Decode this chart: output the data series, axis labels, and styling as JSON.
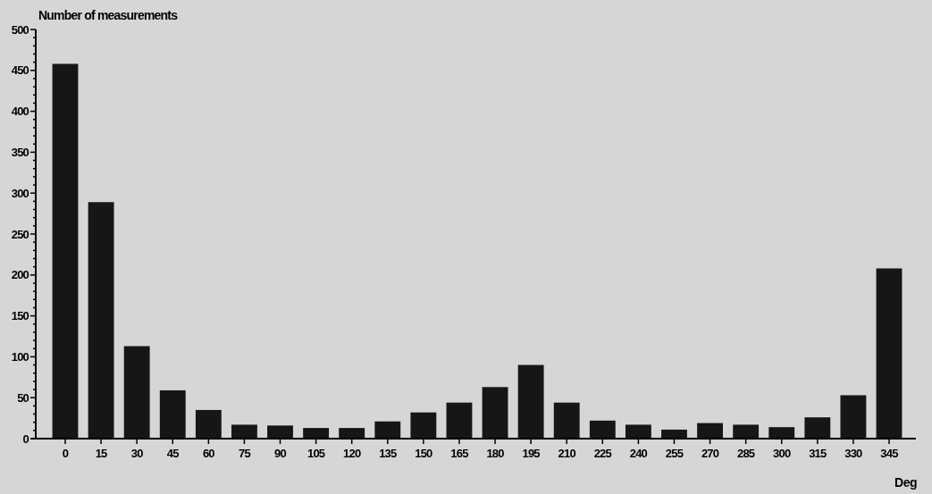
{
  "chart_data": {
    "type": "bar",
    "ylabel": "Number of measurements",
    "xlabel": "Deg",
    "categories": [
      "0",
      "15",
      "30",
      "45",
      "60",
      "75",
      "90",
      "105",
      "120",
      "135",
      "150",
      "165",
      "180",
      "195",
      "210",
      "225",
      "240",
      "255",
      "270",
      "285",
      "300",
      "315",
      "330",
      "345"
    ],
    "values": [
      458,
      289,
      113,
      59,
      35,
      17,
      16,
      13,
      13,
      21,
      32,
      44,
      63,
      90,
      44,
      22,
      17,
      11,
      19,
      17,
      14,
      26,
      53,
      208
    ],
    "color": "#161616",
    "ylim": [
      0,
      500
    ],
    "yticks": [
      0,
      {
        "value": 10,
        "label": null
      },
      {
        "value": 20,
        "label": null
      },
      {
        "value": 30,
        "label": null
      },
      {
        "value": 40,
        "label": null
      },
      50,
      {
        "value": 60,
        "label": null
      },
      {
        "value": 70,
        "label": null
      },
      {
        "value": 80,
        "label": null
      },
      {
        "value": 90,
        "label": null
      },
      100,
      {
        "value": 110,
        "label": null
      },
      {
        "value": 120,
        "label": null
      },
      {
        "value": 130,
        "label": null
      },
      {
        "value": 140,
        "label": null
      },
      150,
      {
        "value": 160,
        "label": null
      },
      {
        "value": 170,
        "label": null
      },
      {
        "value": 180,
        "label": null
      },
      {
        "value": 190,
        "label": null
      },
      200,
      {
        "value": 210,
        "label": null
      },
      {
        "value": 220,
        "label": null
      },
      {
        "value": 230,
        "label": null
      },
      {
        "value": 240,
        "label": null
      },
      250,
      {
        "value": 260,
        "label": null
      },
      {
        "value": 270,
        "label": null
      },
      {
        "value": 280,
        "label": null
      },
      {
        "value": 290,
        "label": null
      },
      300,
      {
        "value": 310,
        "label": null
      },
      {
        "value": 320,
        "label": null
      },
      {
        "value": 330,
        "label": null
      },
      {
        "value": 340,
        "label": null
      },
      350,
      {
        "value": 360,
        "label": null
      },
      {
        "value": 370,
        "label": null
      },
      {
        "value": 380,
        "label": null
      },
      {
        "value": 390,
        "label": null
      },
      400,
      {
        "value": 410,
        "label": null
      },
      {
        "value": 420,
        "label": null
      },
      {
        "value": 430,
        "label": null
      },
      {
        "value": 440,
        "label": null
      },
      450,
      {
        "value": 460,
        "label": null
      },
      {
        "value": 470,
        "label": null
      },
      {
        "value": 480,
        "label": null
      },
      {
        "value": 490,
        "label": null
      },
      500
    ],
    "grid": false
  }
}
